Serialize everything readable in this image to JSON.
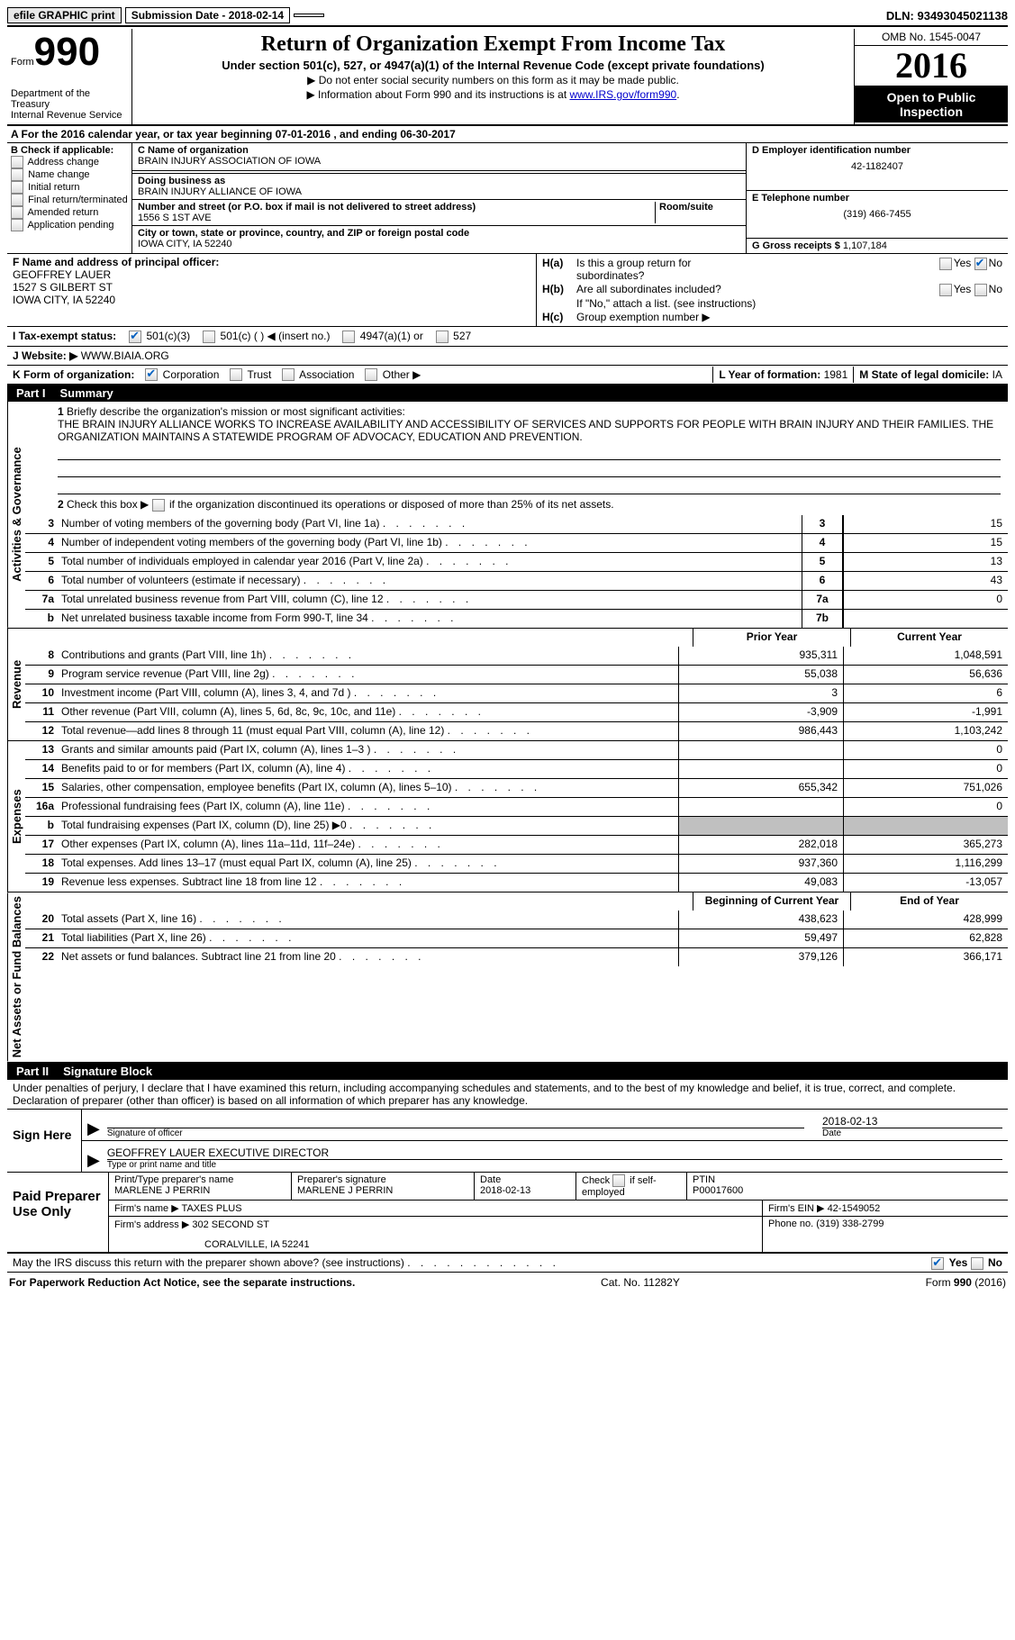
{
  "topbar": {
    "efile": "efile GRAPHIC print",
    "submission": "Submission Date - 2018-02-14",
    "dln": "DLN: 93493045021138"
  },
  "header": {
    "form_label": "Form",
    "form_num": "990",
    "dept1": "Department of the Treasury",
    "dept2": "Internal Revenue Service",
    "title": "Return of Organization Exempt From Income Tax",
    "subtitle": "Under section 501(c), 527, or 4947(a)(1) of the Internal Revenue Code (except private foundations)",
    "note1": "▶ Do not enter social security numbers on this form as it may be made public.",
    "note2_pre": "▶ Information about Form 990 and its instructions is at ",
    "note2_link": "www.IRS.gov/form990",
    "omb": "OMB No. 1545-0047",
    "year": "2016",
    "open": "Open to Public Inspection"
  },
  "sectionA": "A   For the 2016 calendar year, or tax year beginning 07-01-2016    , and ending 06-30-2017",
  "B": {
    "label": "B Check if applicable:",
    "opts": [
      "Address change",
      "Name change",
      "Initial return",
      "Final return/terminated",
      "Amended return",
      "Application pending"
    ]
  },
  "C": {
    "name_label": "C Name of organization",
    "name": "BRAIN INJURY ASSOCIATION OF IOWA",
    "dba_label": "Doing business as",
    "dba": "BRAIN INJURY ALLIANCE OF IOWA",
    "street_label": "Number and street (or P.O. box if mail is not delivered to street address)",
    "room_label": "Room/suite",
    "street": "1556 S 1ST AVE",
    "city_label": "City or town, state or province, country, and ZIP or foreign postal code",
    "city": "IOWA CITY, IA  52240"
  },
  "D": {
    "label": "D Employer identification number",
    "value": "42-1182407"
  },
  "E": {
    "label": "E Telephone number",
    "value": "(319) 466-7455"
  },
  "G": {
    "label": "G Gross receipts $",
    "value": "1,107,184"
  },
  "F": {
    "label": "F  Name and address of principal officer:",
    "name": "GEOFFREY LAUER",
    "street": "1527 S GILBERT ST",
    "city": "IOWA CITY, IA  52240"
  },
  "H": {
    "a": "Is this a group return for",
    "a2": "subordinates?",
    "b": "Are all subordinates included?",
    "b_note": "If \"No,\" attach a list. (see instructions)",
    "c": "Group exemption number ▶"
  },
  "I": {
    "label": "I   Tax-exempt status:",
    "o1": "501(c)(3)",
    "o2": "501(c) (    ) ◀ (insert no.)",
    "o3": "4947(a)(1) or",
    "o4": "527"
  },
  "J": {
    "label": "J   Website: ▶",
    "value": "WWW.BIAIA.ORG"
  },
  "K": {
    "label": "K Form of organization:",
    "opts": [
      "Corporation",
      "Trust",
      "Association",
      "Other ▶"
    ]
  },
  "L": {
    "label": "L Year of formation:",
    "value": "1981"
  },
  "M": {
    "label": "M State of legal domicile:",
    "value": "IA"
  },
  "part1": {
    "header": "Part I",
    "title": "Summary",
    "side1": "Activities & Governance",
    "side2": "Revenue",
    "side3": "Expenses",
    "side4": "Net Assets or Fund Balances",
    "l1": "Briefly describe the organization's mission or most significant activities:",
    "mission": "THE BRAIN INJURY ALLIANCE WORKS TO INCREASE AVAILABILITY AND ACCESSIBILITY OF SERVICES AND SUPPORTS FOR PEOPLE WITH BRAIN INJURY AND THEIR FAMILIES. THE ORGANIZATION MAINTAINS A STATEWIDE PROGRAM OF ADVOCACY, EDUCATION AND PREVENTION.",
    "l2": "Check this box ▶         if the organization discontinued its operations or disposed of more than 25% of its net assets.",
    "rows_gov": [
      {
        "n": "3",
        "d": "Number of voting members of the governing body (Part VI, line 1a)",
        "b": "3",
        "v": "15"
      },
      {
        "n": "4",
        "d": "Number of independent voting members of the governing body (Part VI, line 1b)",
        "b": "4",
        "v": "15"
      },
      {
        "n": "5",
        "d": "Total number of individuals employed in calendar year 2016 (Part V, line 2a)",
        "b": "5",
        "v": "13"
      },
      {
        "n": "6",
        "d": "Total number of volunteers (estimate if necessary)",
        "b": "6",
        "v": "43"
      },
      {
        "n": "7a",
        "d": "Total unrelated business revenue from Part VIII, column (C), line 12",
        "b": "7a",
        "v": "0"
      },
      {
        "n": "b",
        "d": "Net unrelated business taxable income from Form 990-T, line 34",
        "b": "7b",
        "v": ""
      }
    ],
    "col_hdr1": "Prior Year",
    "col_hdr2": "Current Year",
    "rows_rev": [
      {
        "n": "8",
        "d": "Contributions and grants (Part VIII, line 1h)",
        "p": "935,311",
        "c": "1,048,591"
      },
      {
        "n": "9",
        "d": "Program service revenue (Part VIII, line 2g)",
        "p": "55,038",
        "c": "56,636"
      },
      {
        "n": "10",
        "d": "Investment income (Part VIII, column (A), lines 3, 4, and 7d )",
        "p": "3",
        "c": "6"
      },
      {
        "n": "11",
        "d": "Other revenue (Part VIII, column (A), lines 5, 6d, 8c, 9c, 10c, and 11e)",
        "p": "-3,909",
        "c": "-1,991"
      },
      {
        "n": "12",
        "d": "Total revenue—add lines 8 through 11 (must equal Part VIII, column (A), line 12)",
        "p": "986,443",
        "c": "1,103,242"
      }
    ],
    "rows_exp": [
      {
        "n": "13",
        "d": "Grants and similar amounts paid (Part IX, column (A), lines 1–3 )",
        "p": "",
        "c": "0"
      },
      {
        "n": "14",
        "d": "Benefits paid to or for members (Part IX, column (A), line 4)",
        "p": "",
        "c": "0"
      },
      {
        "n": "15",
        "d": "Salaries, other compensation, employee benefits (Part IX, column (A), lines 5–10)",
        "p": "655,342",
        "c": "751,026"
      },
      {
        "n": "16a",
        "d": "Professional fundraising fees (Part IX, column (A), line 11e)",
        "p": "",
        "c": "0"
      },
      {
        "n": "b",
        "d": "Total fundraising expenses (Part IX, column (D), line 25) ▶0",
        "p": "GREY",
        "c": "GREY"
      },
      {
        "n": "17",
        "d": "Other expenses (Part IX, column (A), lines 11a–11d, 11f–24e)",
        "p": "282,018",
        "c": "365,273"
      },
      {
        "n": "18",
        "d": "Total expenses. Add lines 13–17 (must equal Part IX, column (A), line 25)",
        "p": "937,360",
        "c": "1,116,299"
      },
      {
        "n": "19",
        "d": "Revenue less expenses. Subtract line 18 from line 12",
        "p": "49,083",
        "c": "-13,057"
      }
    ],
    "col_hdr3": "Beginning of Current Year",
    "col_hdr4": "End of Year",
    "rows_net": [
      {
        "n": "20",
        "d": "Total assets (Part X, line 16)",
        "p": "438,623",
        "c": "428,999"
      },
      {
        "n": "21",
        "d": "Total liabilities (Part X, line 26)",
        "p": "59,497",
        "c": "62,828"
      },
      {
        "n": "22",
        "d": "Net assets or fund balances. Subtract line 21 from line 20",
        "p": "379,126",
        "c": "366,171"
      }
    ]
  },
  "part2": {
    "header": "Part II",
    "title": "Signature Block",
    "decl": "Under penalties of perjury, I declare that I have examined this return, including accompanying schedules and statements, and to the best of my knowledge and belief, it is true, correct, and complete. Declaration of preparer (other than officer) is based on all information of which preparer has any knowledge.",
    "sign_here": "Sign Here",
    "sig_officer": "Signature of officer",
    "sig_date": "2018-02-13",
    "sig_date_lbl": "Date",
    "officer_name": "GEOFFREY LAUER EXECUTIVE DIRECTOR",
    "type_name": "Type or print name and title",
    "paid": "Paid Preparer Use Only",
    "prep_name_lbl": "Print/Type preparer's name",
    "prep_name": "MARLENE J PERRIN",
    "prep_sig_lbl": "Preparer's signature",
    "prep_sig": "MARLENE J PERRIN",
    "prep_date_lbl": "Date",
    "prep_date": "2018-02-13",
    "check_self": "Check         if self-employed",
    "ptin_lbl": "PTIN",
    "ptin": "P00017600",
    "firm_name_lbl": "Firm's name      ▶",
    "firm_name": "TAXES PLUS",
    "firm_ein_lbl": "Firm's EIN ▶",
    "firm_ein": "42-1549052",
    "firm_addr_lbl": "Firm's address ▶",
    "firm_addr1": "302 SECOND ST",
    "firm_addr2": "CORALVILLE, IA  52241",
    "phone_lbl": "Phone no.",
    "phone": "(319) 338-2799"
  },
  "discuss": "May the IRS discuss this return with the preparer shown above? (see instructions)",
  "footer": {
    "left": "For Paperwork Reduction Act Notice, see the separate instructions.",
    "mid": "Cat. No. 11282Y",
    "right": "Form 990 (2016)"
  },
  "yesno": {
    "yes": "Yes",
    "no": "No"
  }
}
